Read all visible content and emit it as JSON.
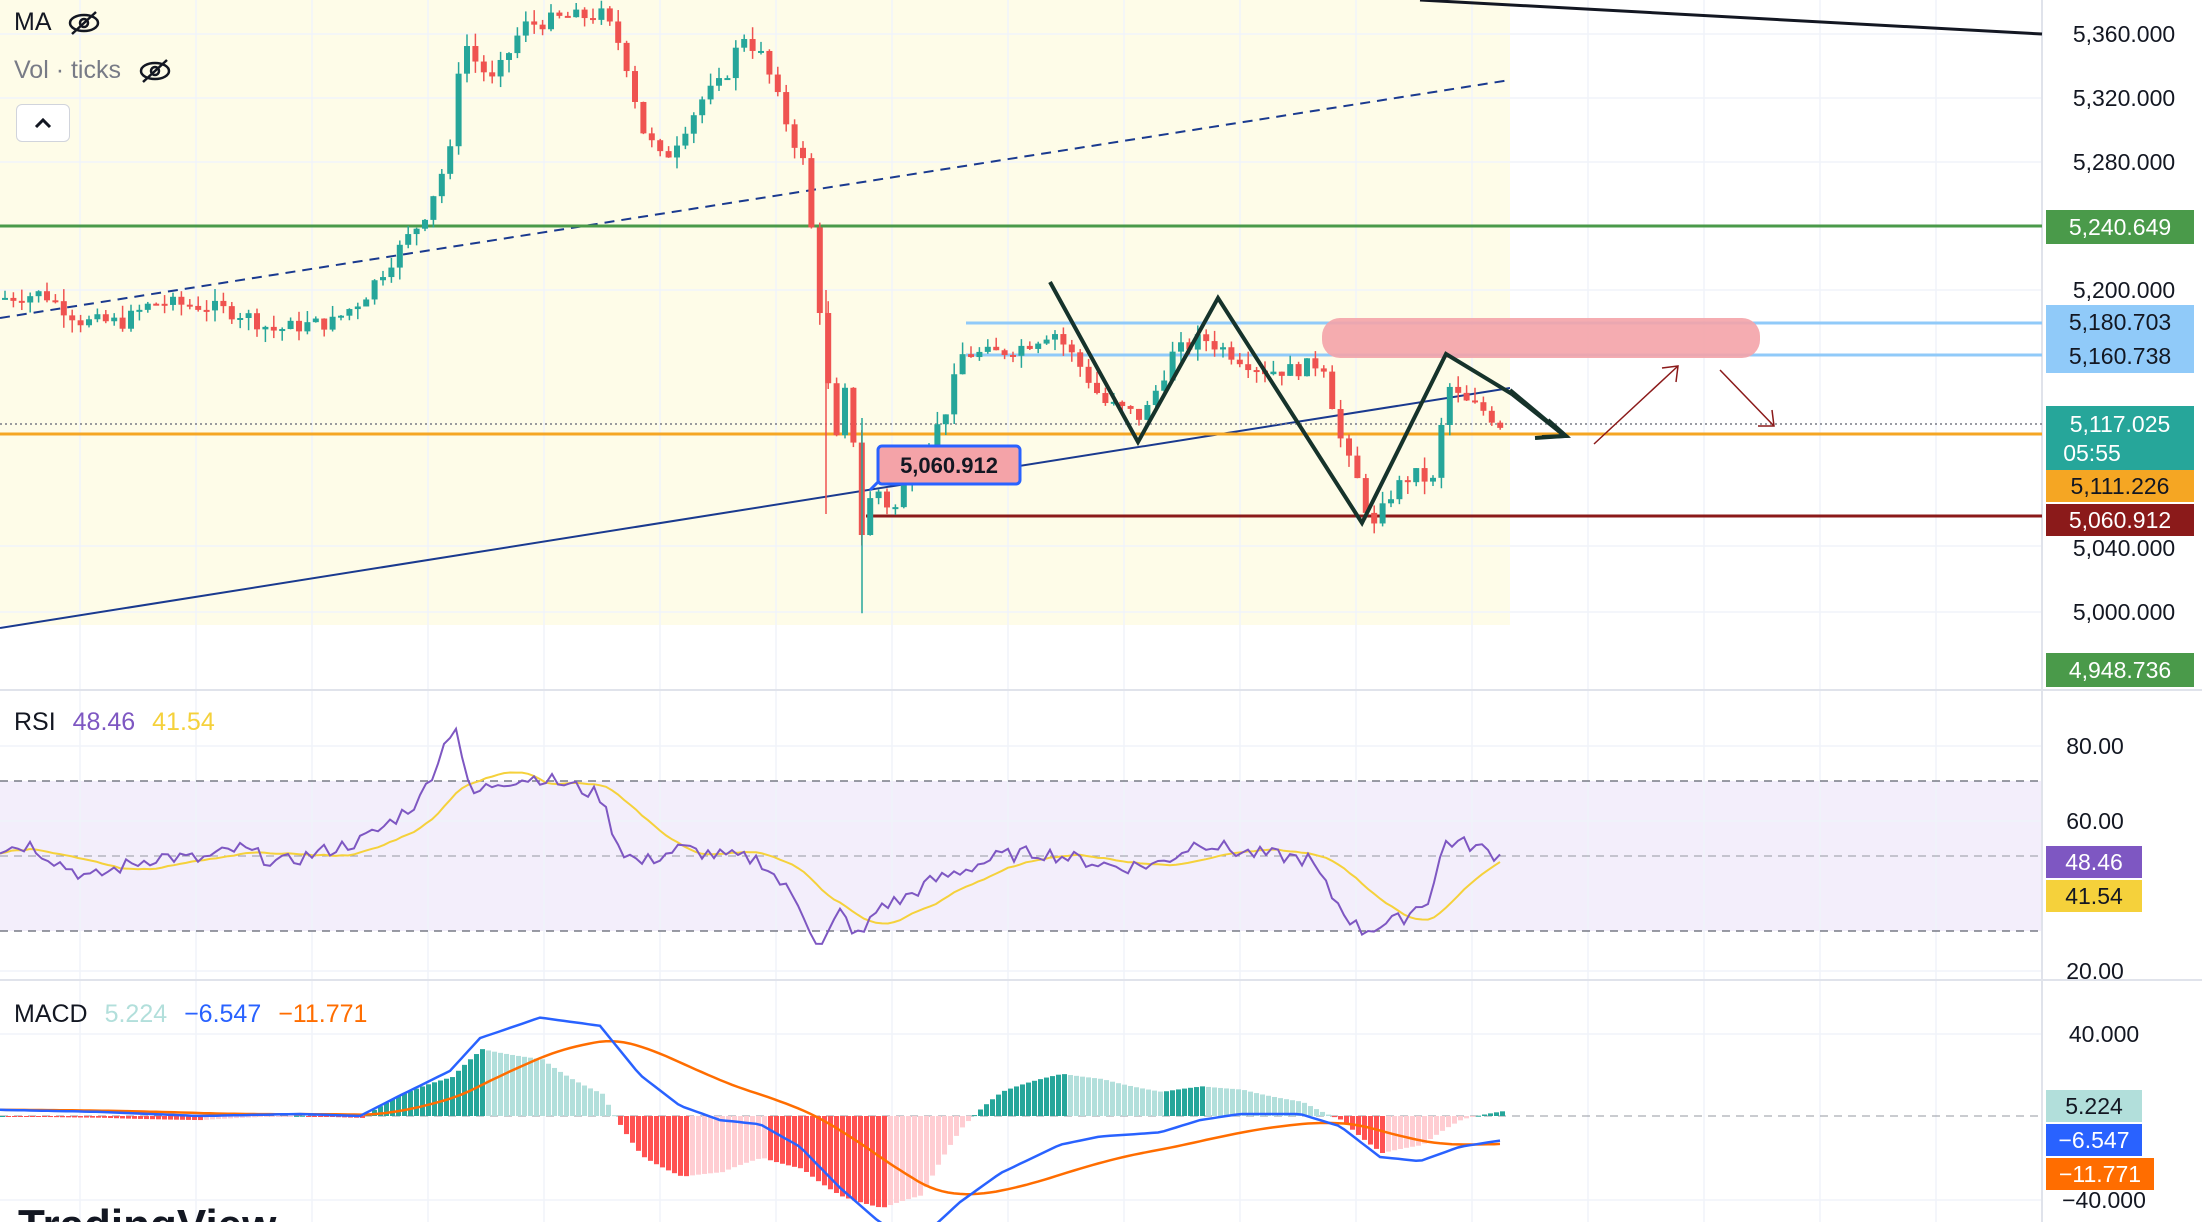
{
  "legend": {
    "ma_label": "MA",
    "vol_label": "Vol · ticks",
    "collapse_icon": "chevron-up-icon",
    "hidden_icon": "eye-crossed-icon"
  },
  "rsi_legend": {
    "name": "RSI",
    "value1": "48.46",
    "value2": "41.54"
  },
  "macd_legend": {
    "name": "MACD",
    "value1": "5.224",
    "value2": "−6.547",
    "value3": "−11.771"
  },
  "colors": {
    "up": "#26a69a",
    "down": "#ef5350",
    "green_level": "#4a9a4a",
    "orange_level": "#f5a623",
    "maroon_level": "#8b1a1a",
    "blue_zone": "#90caf9",
    "pink_zone": "#f4a3a8",
    "rsi": "#7e57c2",
    "rsi_ma": "#f5d13b",
    "macd": "#2962ff",
    "signal": "#ff6d00",
    "trendline": "#1a3a8f"
  },
  "chart_data": [
    {
      "type": "candlestick",
      "title": "",
      "price_axis_labels": [
        "5,360.000",
        "5,320.000",
        "5,280.000",
        "5,200.000",
        "5,040.000",
        "5,000.000"
      ],
      "ylim": [
        4940,
        5380
      ],
      "current_price": "5,117.025",
      "countdown": "05:55",
      "price_tags": [
        {
          "value": "5,240.649",
          "color": "#4a9a4a",
          "text_color": "#ffffff"
        },
        {
          "value": "5,180.703",
          "color": "#90caf9",
          "text_color": "#131722"
        },
        {
          "value": "5,160.738",
          "color": "#90caf9",
          "text_color": "#131722"
        },
        {
          "value": "5,117.025",
          "color": "#26a69a",
          "text_color": "#ffffff"
        },
        {
          "value": "5,111.226",
          "color": "#f5a623",
          "text_color": "#131722"
        },
        {
          "value": "5,060.912",
          "color": "#8b1a1a",
          "text_color": "#ffffff"
        },
        {
          "value": "4,948.736",
          "color": "#4a9a4a",
          "text_color": "#ffffff"
        }
      ],
      "levels": [
        {
          "price": 5240.649,
          "color": "#4a9a4a"
        },
        {
          "price": 5111.226,
          "color": "#f5a623"
        },
        {
          "price": 5060.912,
          "color": "#8b1a1a"
        }
      ],
      "zone_label": "5,060.912",
      "grid": true
    },
    {
      "type": "line",
      "name": "RSI",
      "axis_labels": [
        "80.00",
        "60.00",
        "20.00"
      ],
      "ylim": [
        18,
        88
      ],
      "bands": [
        30,
        70
      ],
      "tags": [
        "48.46",
        "41.54"
      ]
    },
    {
      "type": "line",
      "name": "MACD",
      "axis_labels": [
        "40.000",
        "−40.000"
      ],
      "ylim": [
        -45,
        52
      ],
      "tags": [
        "5.224",
        "−6.547",
        "−11.771"
      ]
    }
  ],
  "watermark": "TradingView"
}
